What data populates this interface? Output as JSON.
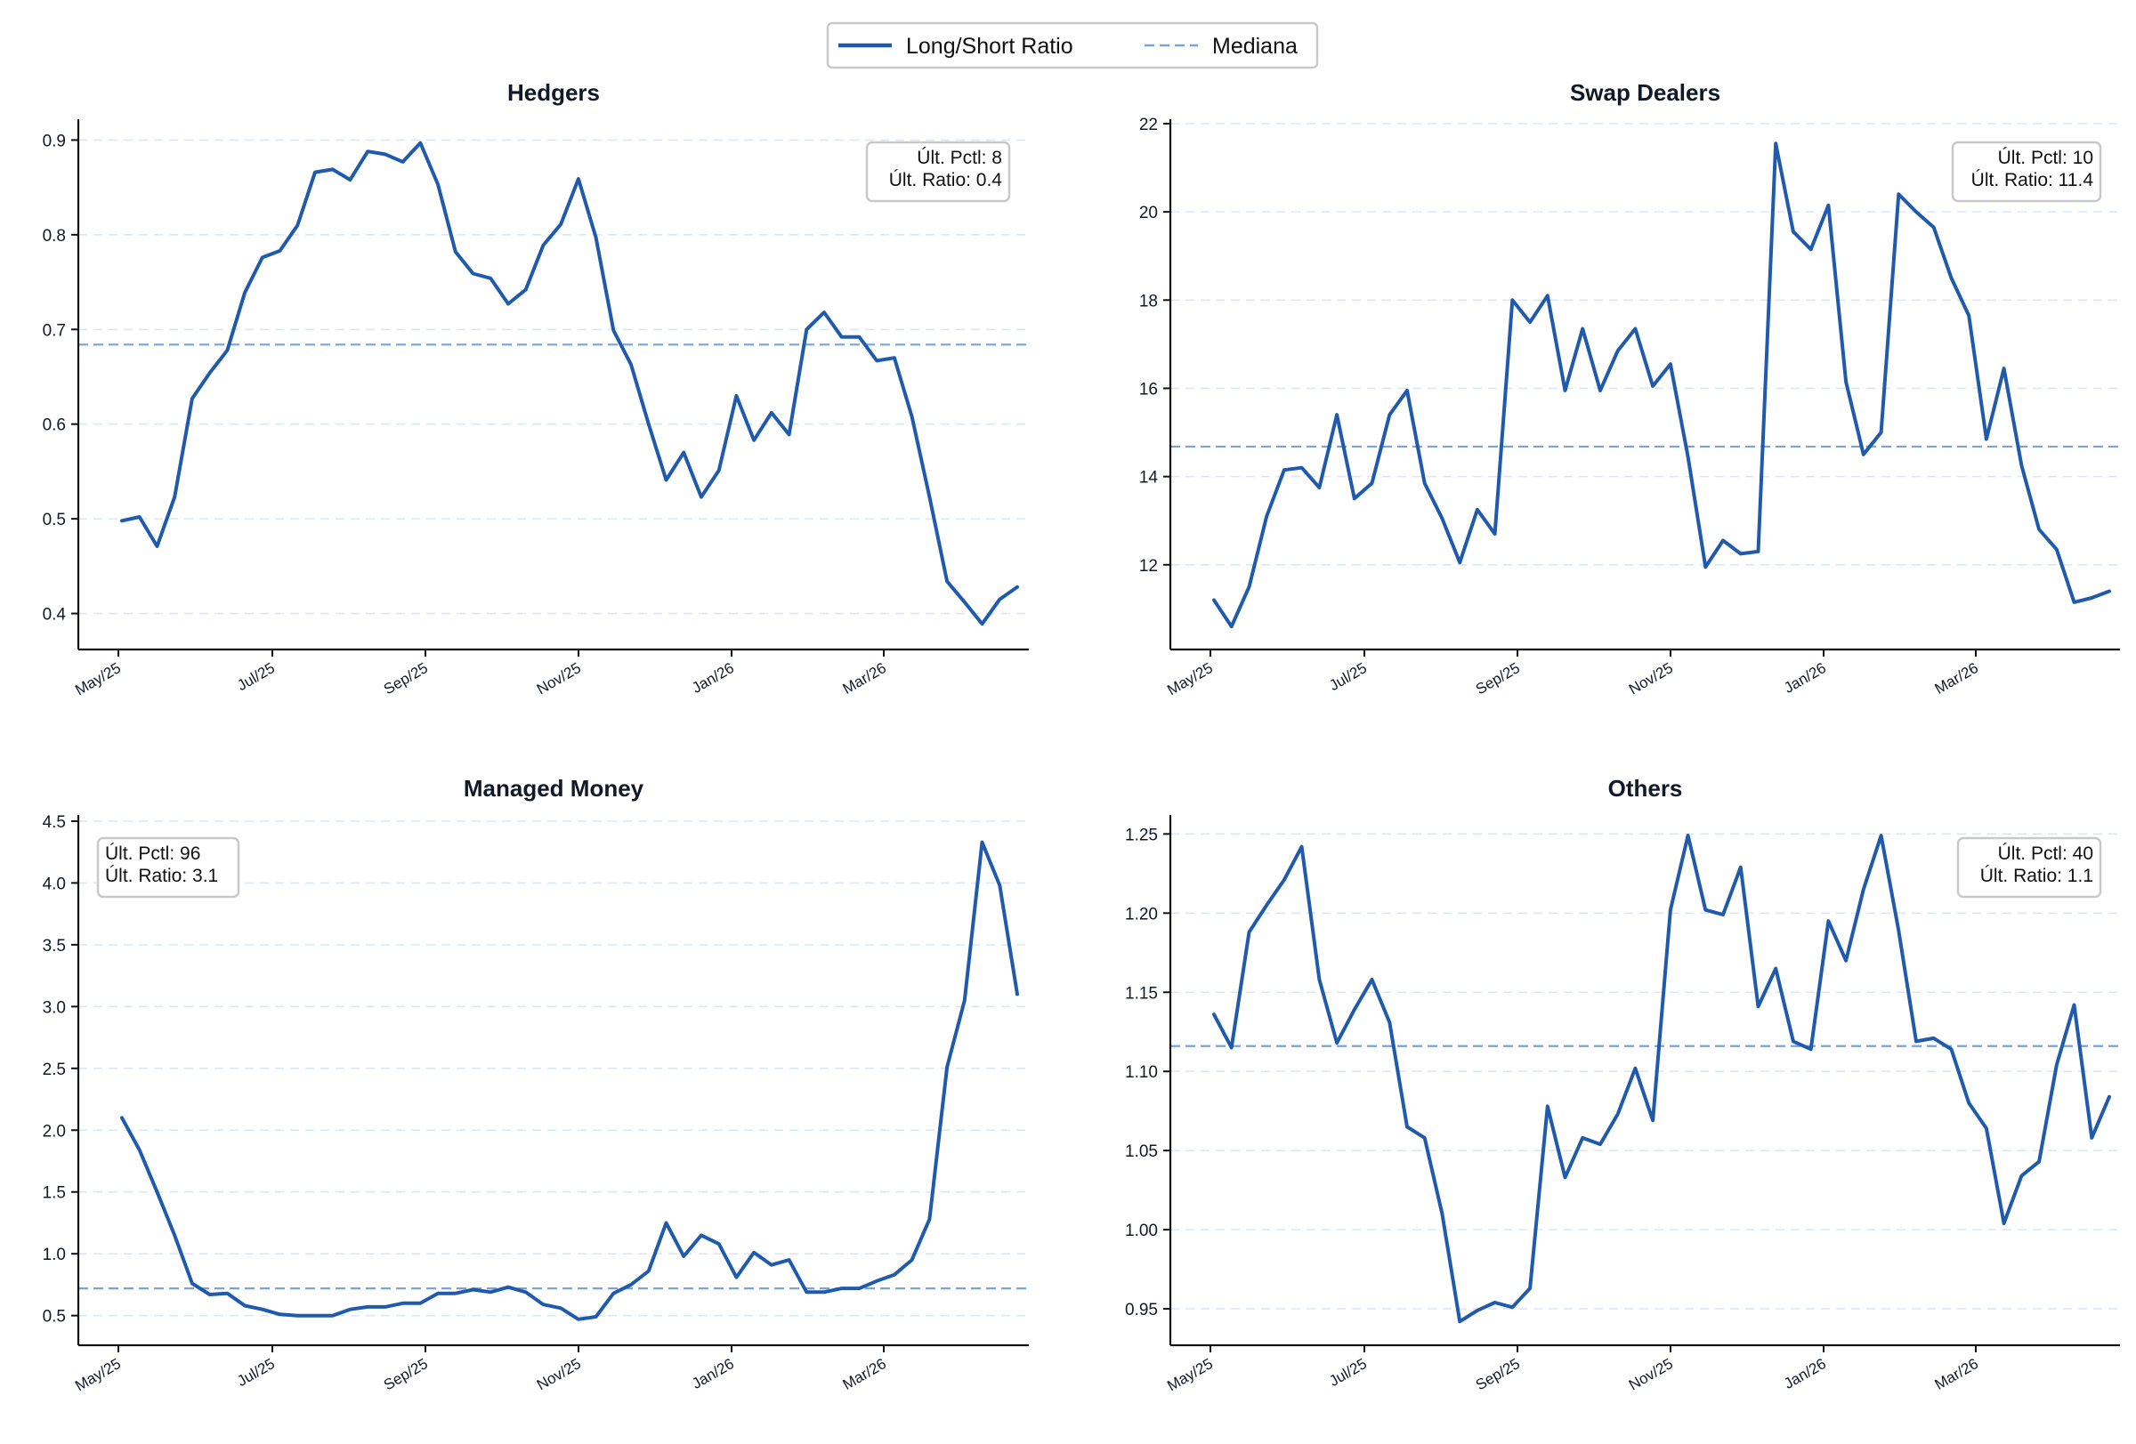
{
  "legend": {
    "series_label": "Long/Short Ratio",
    "median_label": "Mediana"
  },
  "colors": {
    "series": "#1f5aad",
    "median": "#7aa3d8",
    "grid": "#dbe7f7"
  },
  "chart_data": [
    {
      "type": "line",
      "title": "Hedgers",
      "x_tick_labels": [
        "May/25",
        "Jul/25",
        "Sep/25",
        "Nov/25",
        "Jan/26",
        "Mar/26"
      ],
      "y_ticks": [
        "0.4",
        "0.5",
        "0.6",
        "0.7",
        "0.8",
        "0.9"
      ],
      "y_tick_values": [
        0.4,
        0.5,
        0.6,
        0.7,
        0.8,
        0.9
      ],
      "ylim": [
        0.362,
        0.922
      ],
      "median": 0.684,
      "stats_position": "top-right",
      "stats": [
        "Últ. Pctl: 8",
        "Últ. Ratio: 0.4"
      ],
      "series": [
        {
          "name": "Long/Short Ratio",
          "values": [
            0.498,
            0.502,
            0.471,
            0.523,
            0.627,
            0.654,
            0.678,
            0.739,
            0.776,
            0.783,
            0.81,
            0.866,
            0.869,
            0.858,
            0.888,
            0.885,
            0.877,
            0.897,
            0.853,
            0.782,
            0.759,
            0.754,
            0.727,
            0.742,
            0.789,
            0.811,
            0.859,
            0.797,
            0.699,
            0.663,
            0.6,
            0.541,
            0.57,
            0.523,
            0.551,
            0.63,
            0.583,
            0.612,
            0.589,
            0.7,
            0.718,
            0.692,
            0.692,
            0.667,
            0.67,
            0.608,
            0.523,
            0.434,
            0.412,
            0.389,
            0.415,
            0.428
          ]
        }
      ]
    },
    {
      "type": "line",
      "title": "Swap Dealers",
      "x_tick_labels": [
        "May/25",
        "Jul/25",
        "Sep/25",
        "Nov/25",
        "Jan/26",
        "Mar/26"
      ],
      "y_ticks": [
        "12",
        "14",
        "16",
        "18",
        "20",
        "22"
      ],
      "y_tick_values": [
        12,
        14,
        16,
        18,
        20,
        22
      ],
      "ylim": [
        10.08,
        22.1
      ],
      "median": 14.68,
      "stats_position": "top-right",
      "stats": [
        "Últ. Pctl: 10",
        "Últ. Ratio: 11.4"
      ],
      "series": [
        {
          "name": "Long/Short Ratio",
          "values": [
            11.2,
            10.6,
            11.5,
            13.1,
            14.15,
            14.2,
            13.75,
            15.4,
            13.5,
            13.85,
            15.4,
            15.95,
            13.85,
            13.05,
            12.05,
            13.25,
            12.7,
            18.0,
            17.5,
            18.1,
            15.95,
            17.35,
            15.95,
            16.85,
            17.35,
            16.05,
            16.55,
            14.45,
            11.95,
            12.55,
            12.25,
            12.3,
            21.55,
            19.55,
            19.15,
            20.15,
            16.15,
            14.5,
            15.0,
            20.4,
            20.0,
            19.65,
            18.5,
            17.65,
            14.85,
            16.45,
            14.25,
            12.8,
            12.35,
            11.15,
            11.25,
            11.4
          ]
        }
      ]
    },
    {
      "type": "line",
      "title": "Managed Money",
      "x_tick_labels": [
        "May/25",
        "Jul/25",
        "Sep/25",
        "Nov/25",
        "Jan/26",
        "Mar/26"
      ],
      "y_ticks": [
        "0.5",
        "1.0",
        "1.5",
        "2.0",
        "2.5",
        "3.0",
        "3.5",
        "4.0",
        "4.5"
      ],
      "y_tick_values": [
        0.5,
        1.0,
        1.5,
        2.0,
        2.5,
        3.0,
        3.5,
        4.0,
        4.5
      ],
      "ylim": [
        0.26,
        4.55
      ],
      "median": 0.72,
      "stats_position": "top-left",
      "stats": [
        "Últ. Pctl: 96",
        "Últ. Ratio: 3.1"
      ],
      "series": [
        {
          "name": "Long/Short Ratio",
          "values": [
            2.1,
            1.84,
            1.5,
            1.15,
            0.76,
            0.67,
            0.68,
            0.58,
            0.55,
            0.51,
            0.5,
            0.5,
            0.5,
            0.55,
            0.57,
            0.57,
            0.6,
            0.6,
            0.68,
            0.68,
            0.71,
            0.69,
            0.73,
            0.69,
            0.59,
            0.56,
            0.47,
            0.49,
            0.68,
            0.75,
            0.86,
            1.25,
            0.98,
            1.15,
            1.08,
            0.81,
            1.01,
            0.91,
            0.95,
            0.69,
            0.69,
            0.72,
            0.72,
            0.78,
            0.83,
            0.95,
            1.28,
            2.51,
            3.05,
            4.33,
            3.98,
            3.1
          ]
        }
      ]
    },
    {
      "type": "line",
      "title": "Others",
      "x_tick_labels": [
        "May/25",
        "Jul/25",
        "Sep/25",
        "Nov/25",
        "Jan/26",
        "Mar/26"
      ],
      "y_ticks": [
        "0.95",
        "1.00",
        "1.05",
        "1.10",
        "1.15",
        "1.20",
        "1.25"
      ],
      "y_tick_values": [
        0.95,
        1.0,
        1.05,
        1.1,
        1.15,
        1.2,
        1.25
      ],
      "ylim": [
        0.927,
        1.262
      ],
      "median": 1.116,
      "stats_position": "top-right",
      "stats": [
        "Últ. Pctl: 40",
        "Últ. Ratio: 1.1"
      ],
      "series": [
        {
          "name": "Long/Short Ratio",
          "values": [
            1.136,
            1.115,
            1.188,
            1.205,
            1.221,
            1.242,
            1.158,
            1.118,
            1.139,
            1.158,
            1.131,
            1.065,
            1.058,
            1.01,
            0.942,
            0.949,
            0.954,
            0.951,
            0.963,
            1.078,
            1.033,
            1.058,
            1.054,
            1.073,
            1.102,
            1.069,
            1.202,
            1.249,
            1.202,
            1.199,
            1.229,
            1.141,
            1.165,
            1.119,
            1.114,
            1.195,
            1.17,
            1.215,
            1.249,
            1.189,
            1.119,
            1.121,
            1.114,
            1.08,
            1.064,
            1.004,
            1.034,
            1.043,
            1.104,
            1.142,
            1.058,
            1.084
          ]
        }
      ]
    }
  ]
}
